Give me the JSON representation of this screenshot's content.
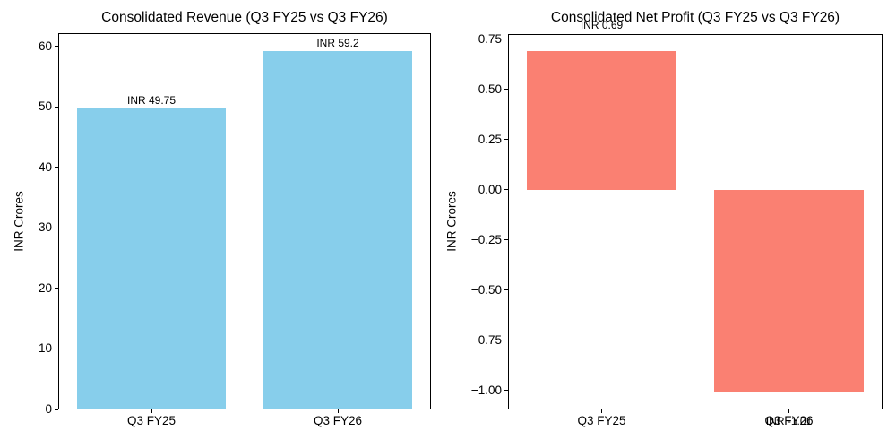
{
  "figure": {
    "background": "#ffffff",
    "text_color": "#000000"
  },
  "chart_data": [
    {
      "type": "bar",
      "title": "Consolidated Revenue (Q3 FY25 vs Q3 FY26)",
      "xlabel": "",
      "ylabel": "INR Crores",
      "categories": [
        "Q3 FY25",
        "Q3 FY26"
      ],
      "values": [
        49.75,
        59.2
      ],
      "bar_labels": [
        "INR 49.75",
        "INR 59.2"
      ],
      "bar_color": "#87CEEB",
      "ylim": [
        0,
        62.16
      ],
      "yticks": [
        0,
        10,
        20,
        30,
        40,
        50,
        60
      ],
      "ytick_labels": [
        "0",
        "10",
        "20",
        "30",
        "40",
        "50",
        "60"
      ],
      "grid": false,
      "legend": null
    },
    {
      "type": "bar",
      "title": "Consolidated Net Profit (Q3 FY25 vs Q3 FY26)",
      "xlabel": "",
      "ylabel": "INR Crores",
      "categories": [
        "Q3 FY25",
        "Q3 FY26"
      ],
      "values": [
        0.69,
        -1.01
      ],
      "bar_labels": [
        "INR 0.69",
        "INR -1.01"
      ],
      "bar_color": "#FA8072",
      "ylim": [
        -1.095,
        0.775
      ],
      "yticks": [
        0.75,
        0.5,
        0.25,
        0,
        -0.25,
        -0.5,
        -0.75,
        -1
      ],
      "ytick_labels": [
        "0.75",
        "0.50",
        "0.25",
        "0.00",
        "−0.25",
        "−0.50",
        "−0.75",
        "−1.00"
      ],
      "grid": false,
      "legend": null
    }
  ]
}
